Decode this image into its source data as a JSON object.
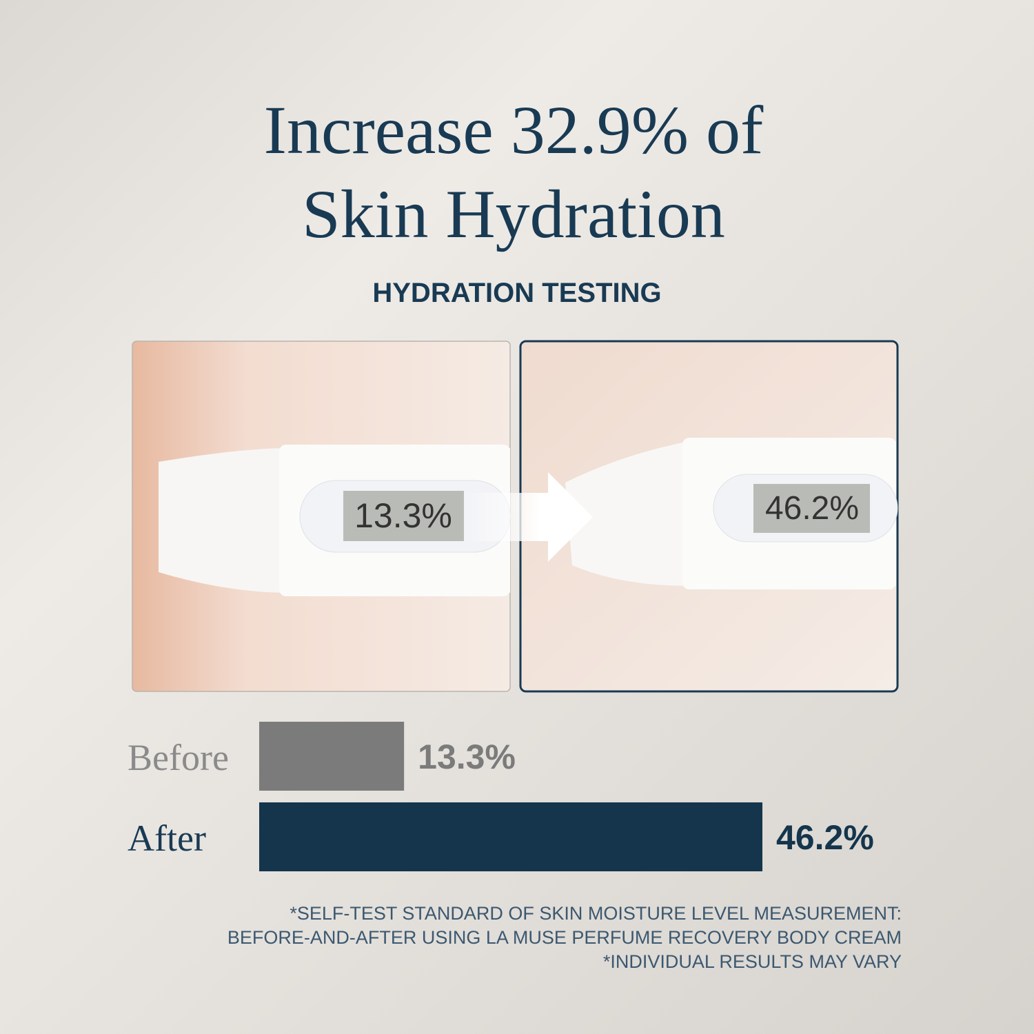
{
  "chart_data": {
    "type": "bar",
    "title": [
      "Increase 32.9% of",
      "Skin Hydration"
    ],
    "subtitle": "HYDRATION TESTING",
    "photos": [
      {
        "reading": "13.3%"
      },
      {
        "reading": "46.2%"
      }
    ],
    "categories": [
      "Before",
      "After"
    ],
    "values": [
      13.3,
      46.2
    ],
    "value_labels": [
      "13.3%",
      "46.2%"
    ],
    "colors": [
      "#7b7b7b",
      "#14354c"
    ],
    "notes": [
      "*SELF-TEST STANDARD OF SKIN MOISTURE LEVEL MEASUREMENT:",
      "BEFORE-AND-AFTER USING LA MUSE PERFUME RECOVERY BODY CREAM",
      "*INDIVIDUAL RESULTS MAY VARY"
    ]
  }
}
